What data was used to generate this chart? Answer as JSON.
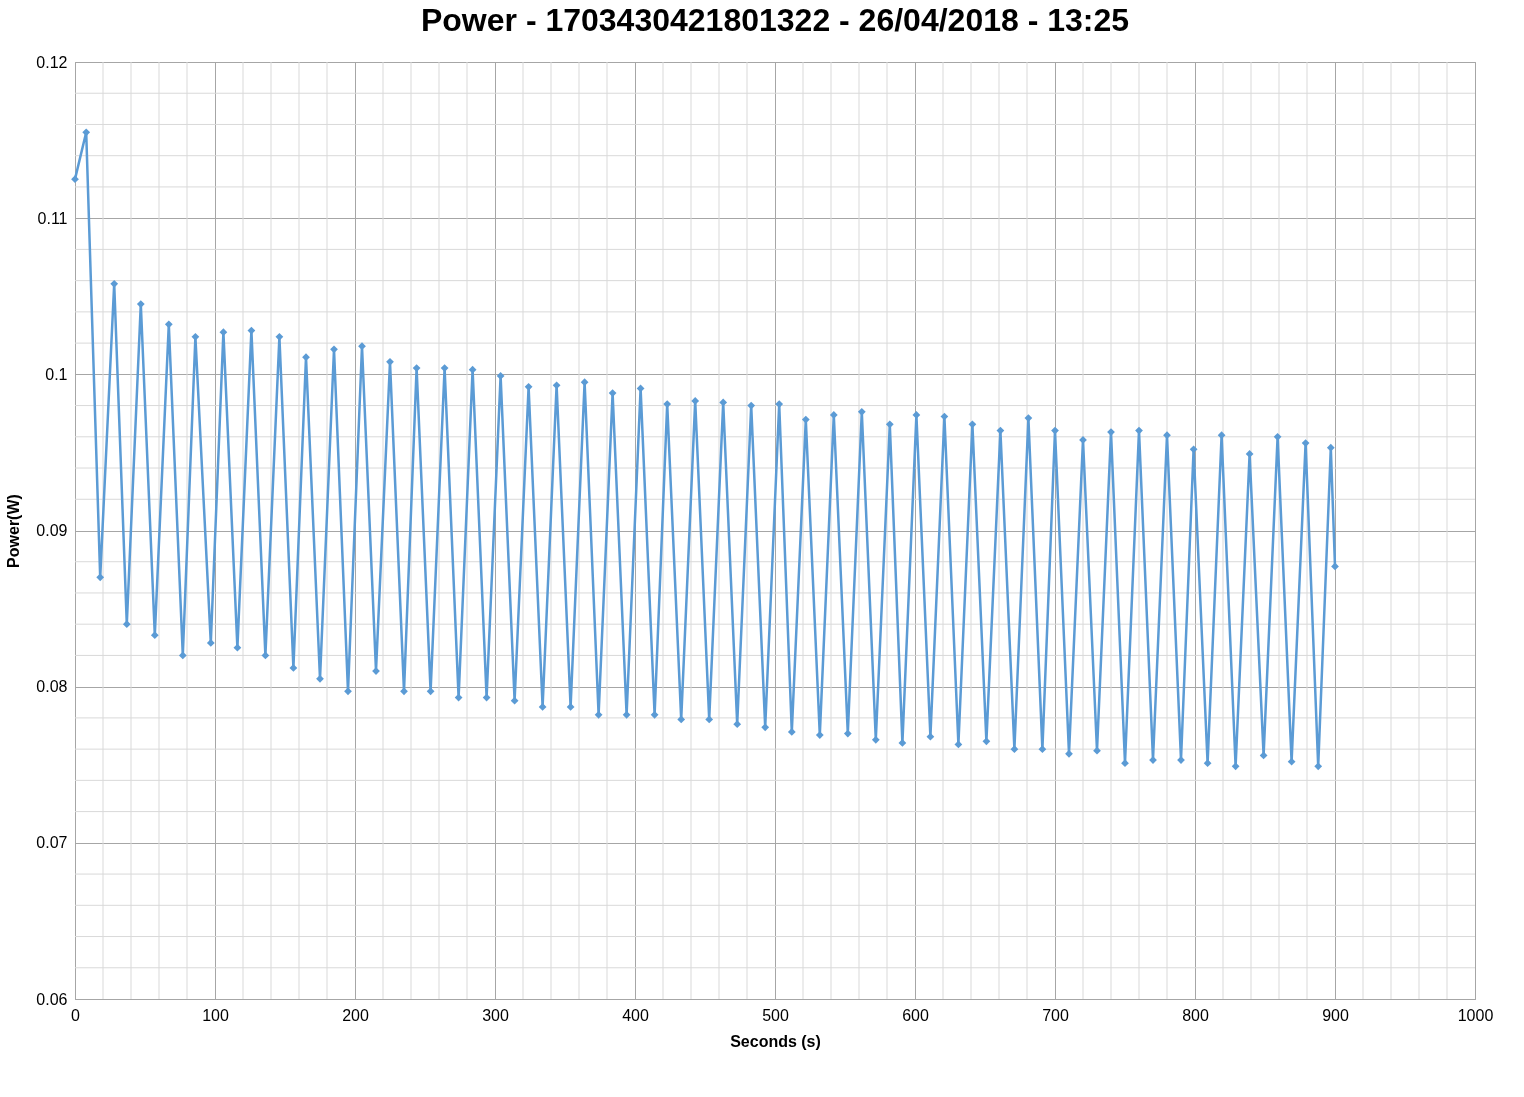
{
  "chart_data": {
    "type": "line",
    "title": "Power - 1703430421801322 - 26/04/2018 - 13:25",
    "xlabel": "Seconds (s)",
    "ylabel": "Power(W)",
    "xlim": [
      0,
      1000
    ],
    "xticks": [
      0,
      100,
      200,
      300,
      400,
      500,
      600,
      700,
      800,
      900,
      1000
    ],
    "ylim": [
      0.06,
      0.12
    ],
    "yticks": [
      0.06,
      0.07,
      0.08,
      0.09,
      0.1,
      0.11,
      0.12
    ],
    "grid": true,
    "legend": false,
    "marker": "diamond",
    "line_style": "solid",
    "series": [
      {
        "color": "#5b9bd5",
        "x": [
          0,
          8,
          18,
          28,
          37,
          47,
          57,
          67,
          77,
          86,
          97,
          106,
          116,
          126,
          136,
          146,
          156,
          165,
          175,
          185,
          195,
          205,
          215,
          225,
          235,
          244,
          254,
          264,
          274,
          284,
          294,
          304,
          314,
          324,
          334,
          344,
          354,
          364,
          374,
          384,
          394,
          404,
          414,
          423,
          433,
          443,
          453,
          463,
          473,
          483,
          493,
          503,
          512,
          522,
          532,
          542,
          552,
          562,
          572,
          582,
          591,
          601,
          611,
          621,
          631,
          641,
          651,
          661,
          671,
          681,
          691,
          700,
          710,
          720,
          730,
          740,
          750,
          760,
          770,
          780,
          790,
          799,
          809,
          819,
          829,
          839,
          849,
          859,
          869,
          879,
          888,
          897,
          900
        ],
        "values": [
          0.1125,
          0.1155,
          0.087,
          0.1058,
          0.084,
          0.1045,
          0.0833,
          0.1032,
          0.082,
          0.1024,
          0.0828,
          0.1027,
          0.0825,
          0.1028,
          0.082,
          0.1024,
          0.0812,
          0.1011,
          0.0805,
          0.1016,
          0.0797,
          0.1018,
          0.081,
          0.1008,
          0.0797,
          0.1004,
          0.0797,
          0.1004,
          0.0793,
          0.1003,
          0.0793,
          0.0999,
          0.0791,
          0.0992,
          0.0787,
          0.0993,
          0.0787,
          0.0995,
          0.0782,
          0.0988,
          0.0782,
          0.0991,
          0.0782,
          0.0981,
          0.0779,
          0.0983,
          0.0779,
          0.0982,
          0.0776,
          0.098,
          0.0774,
          0.0981,
          0.0771,
          0.0971,
          0.0769,
          0.0974,
          0.077,
          0.0976,
          0.0766,
          0.0968,
          0.0764,
          0.0974,
          0.0768,
          0.0973,
          0.0763,
          0.0968,
          0.0765,
          0.0964,
          0.076,
          0.0972,
          0.076,
          0.0964,
          0.0757,
          0.0958,
          0.0759,
          0.0963,
          0.0751,
          0.0964,
          0.0753,
          0.0961,
          0.0753,
          0.0952,
          0.0751,
          0.0961,
          0.0749,
          0.0949,
          0.0756,
          0.096,
          0.0752,
          0.0956,
          0.0749,
          0.0953,
          0.0877
        ]
      }
    ]
  }
}
